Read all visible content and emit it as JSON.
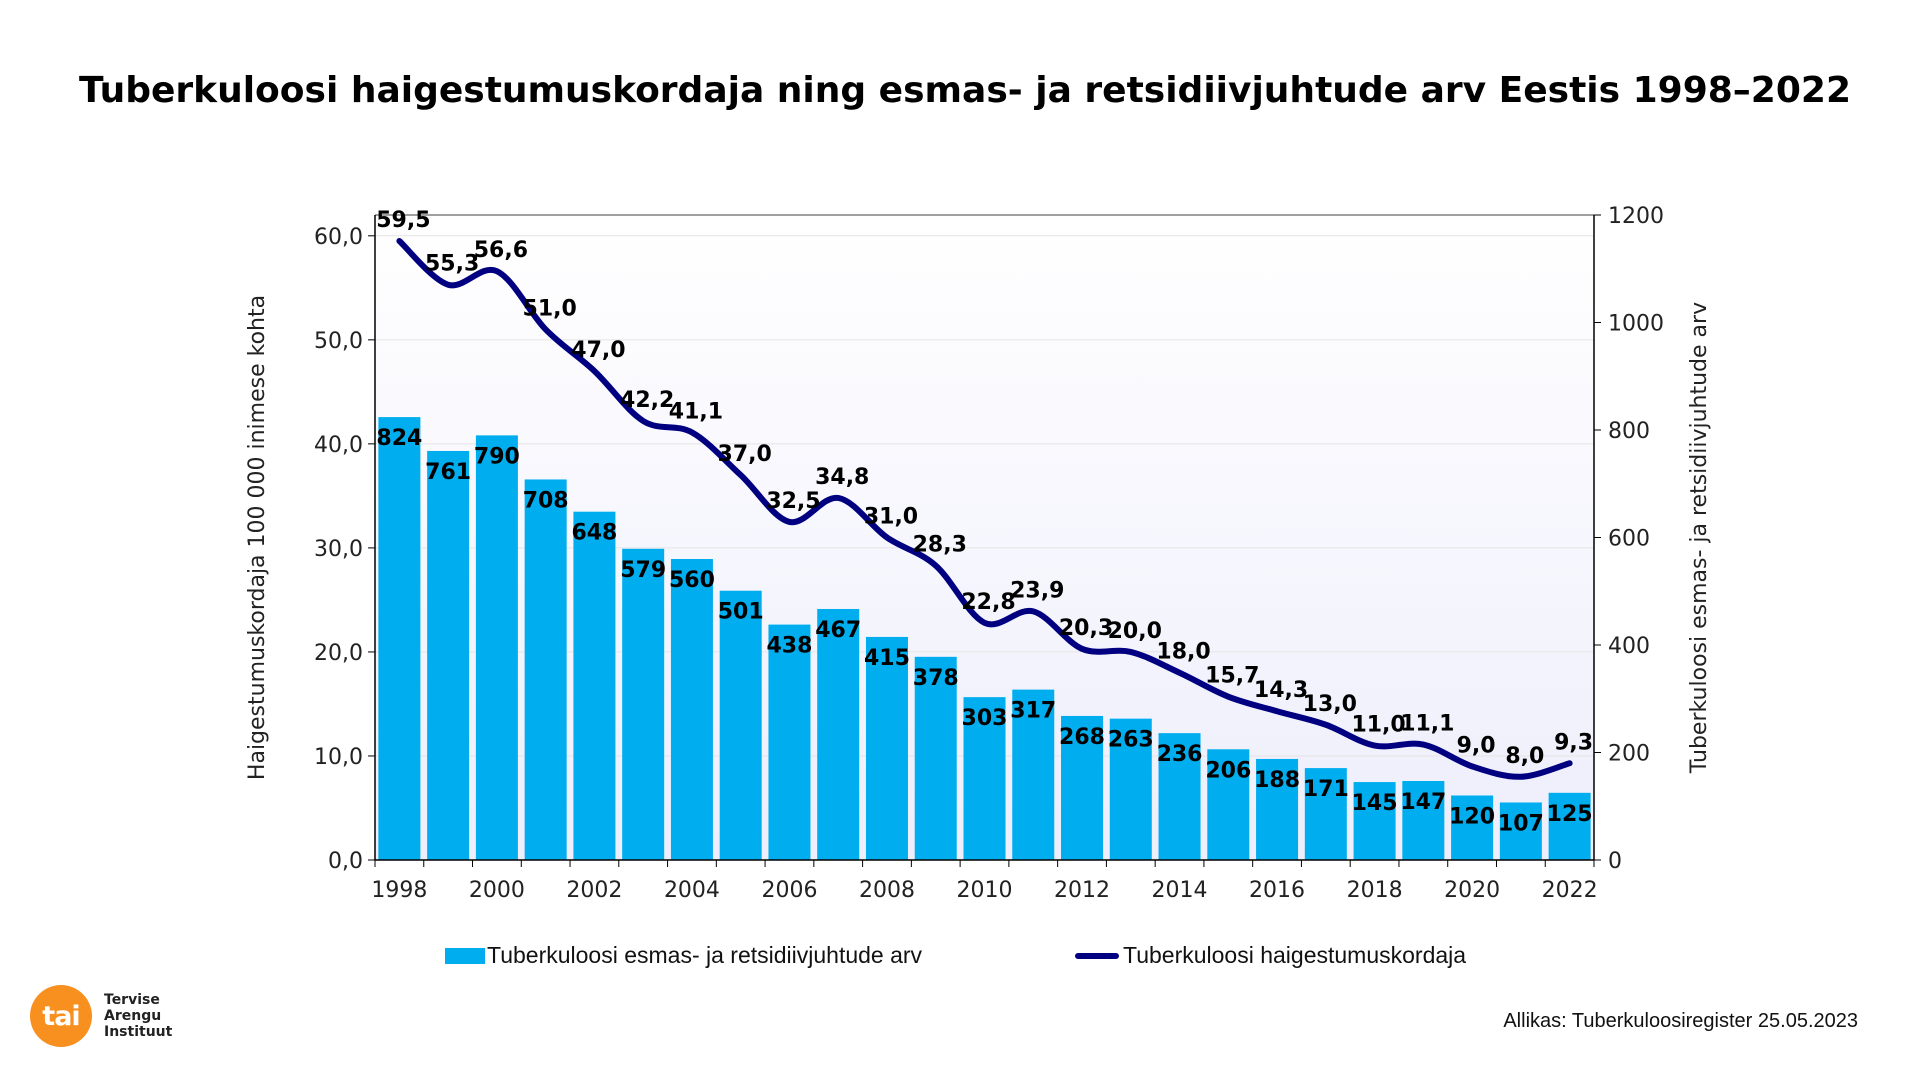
{
  "title": "Tuberkuloosi haigestumuskordaja ning esmas- ja retsidiivjuhtude arv Eestis 1998–2022",
  "source": "Allikas: Tuberkuloosiregister 25.05.2023",
  "logo": {
    "mark": "tai",
    "lines": [
      "Tervise",
      "Arengu",
      "Instituut"
    ],
    "color": "#F7901E"
  },
  "chart_data": {
    "type": "bar+line",
    "categories": [
      1998,
      1999,
      2000,
      2001,
      2002,
      2003,
      2004,
      2005,
      2006,
      2007,
      2008,
      2009,
      2010,
      2011,
      2012,
      2013,
      2014,
      2015,
      2016,
      2017,
      2018,
      2019,
      2020,
      2021,
      2022
    ],
    "x_tick_labels": [
      "1998",
      "2000",
      "2002",
      "2004",
      "2006",
      "2008",
      "2010",
      "2012",
      "2014",
      "2016",
      "2018",
      "2020",
      "2022"
    ],
    "series": [
      {
        "name": "Tuberkuloosi esmas- ja retsidiivjuhtude arv",
        "type": "bar",
        "axis": "right",
        "color": "#00AEEF",
        "values": [
          824,
          761,
          790,
          708,
          648,
          579,
          560,
          501,
          438,
          467,
          415,
          378,
          303,
          317,
          268,
          263,
          236,
          206,
          188,
          171,
          145,
          147,
          120,
          107,
          125
        ]
      },
      {
        "name": "Tuberkuloosi haigestumuskordaja",
        "type": "line",
        "axis": "left",
        "color": "#000080",
        "values": [
          59.5,
          55.3,
          56.6,
          51.0,
          47.0,
          42.2,
          41.1,
          37.0,
          32.5,
          34.8,
          31.0,
          28.3,
          22.8,
          23.9,
          20.3,
          20.0,
          18.0,
          15.7,
          14.3,
          13.0,
          11.0,
          11.1,
          9.0,
          8.0,
          9.3
        ]
      }
    ],
    "ylabel_left": "Haigestumuskordaja 100 000 inimese kohta",
    "ylabel_right": "Tuberkuloosi esmas- ja retsidiivjuhtude arv",
    "ylim_left": [
      0,
      62
    ],
    "ylim_right": [
      0,
      1200
    ],
    "y_ticks_left": [
      "0,0",
      "10,0",
      "20,0",
      "30,0",
      "40,0",
      "50,0",
      "60,0"
    ],
    "y_ticks_right": [
      "0",
      "200",
      "400",
      "600",
      "800",
      "1000",
      "1200"
    ],
    "grid": true,
    "legend_position": "bottom"
  }
}
